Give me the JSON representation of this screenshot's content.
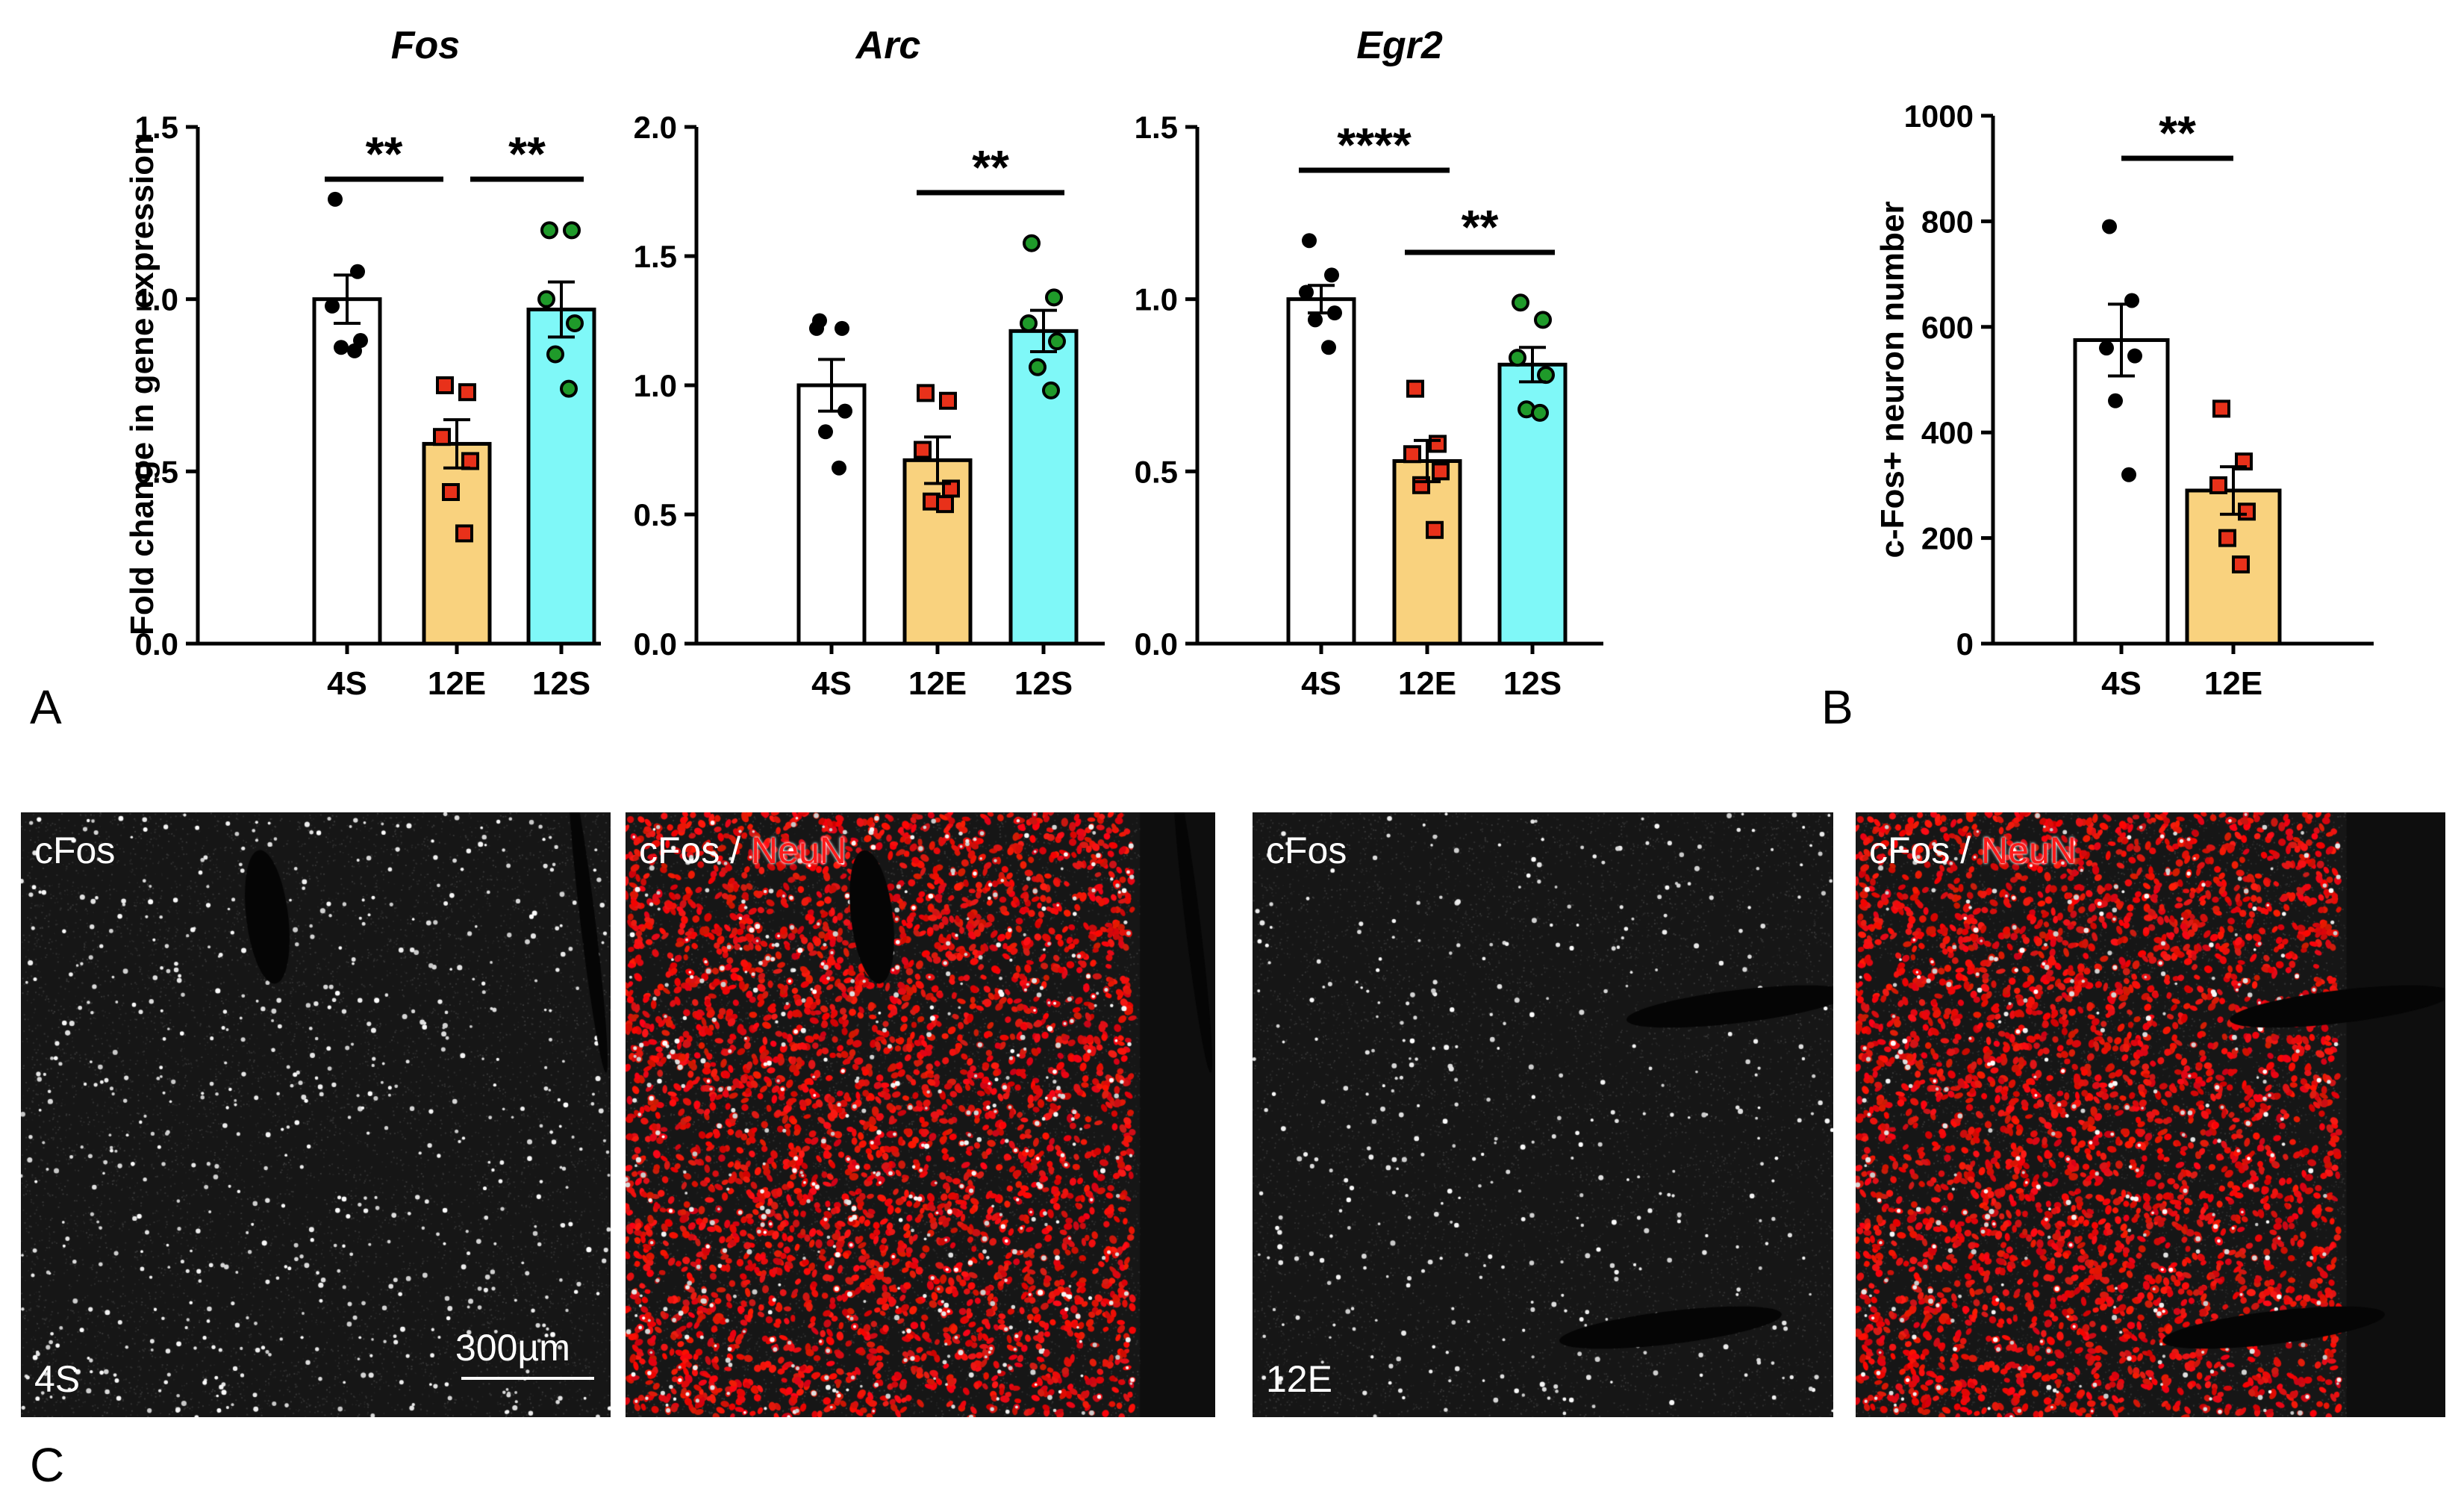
{
  "panel_labels": {
    "A": "A",
    "B": "B",
    "C": "C"
  },
  "colors": {
    "bar_4S": "#ffffff",
    "bar_12E": "#f9d27e",
    "bar_12S": "#7ff8f8",
    "point_4S": "#000000",
    "point_12E": "#e8311a",
    "point_12S": "#1f9a2a",
    "neun": "#ff1a1a"
  },
  "chart_data": [
    {
      "type": "bar",
      "title": "Fos",
      "ylabel": "Fold change in gene expression",
      "ylim": [
        0,
        1.5
      ],
      "yticks": [
        "0.0",
        "0.5",
        "1.0",
        "1.5"
      ],
      "categories": [
        "4S",
        "12E",
        "12S"
      ],
      "values": [
        1.0,
        0.58,
        0.97
      ],
      "sem": [
        0.07,
        0.07,
        0.08
      ],
      "points": [
        [
          1.29,
          1.08,
          0.98,
          0.88,
          0.86,
          0.85
        ],
        [
          0.75,
          0.73,
          0.6,
          0.53,
          0.44,
          0.32
        ],
        [
          1.2,
          1.2,
          1.0,
          0.93,
          0.84,
          0.74
        ]
      ],
      "significance": [
        {
          "from": 0,
          "to": 1,
          "label": "**"
        },
        {
          "from": 1,
          "to": 2,
          "label": "**"
        }
      ]
    },
    {
      "type": "bar",
      "title": "Arc",
      "ylabel": "",
      "ylim": [
        0,
        2.0
      ],
      "yticks": [
        "0.0",
        "0.5",
        "1.0",
        "1.5",
        "2.0"
      ],
      "categories": [
        "4S",
        "12E",
        "12S"
      ],
      "values": [
        1.0,
        0.71,
        1.21
      ],
      "sem": [
        0.1,
        0.09,
        0.08
      ],
      "points": [
        [
          1.25,
          1.22,
          1.22,
          0.9,
          0.82,
          0.68
        ],
        [
          0.97,
          0.94,
          0.75,
          0.6,
          0.55,
          0.54
        ],
        [
          1.55,
          1.34,
          1.24,
          1.17,
          1.07,
          0.98
        ]
      ],
      "significance": [
        {
          "from": 1,
          "to": 2,
          "label": "**"
        }
      ]
    },
    {
      "type": "bar",
      "title": "Egr2",
      "ylabel": "",
      "ylim": [
        0,
        1.5
      ],
      "yticks": [
        "0.0",
        "0.5",
        "1.0",
        "1.5"
      ],
      "categories": [
        "4S",
        "12E",
        "12S"
      ],
      "values": [
        1.0,
        0.53,
        0.81
      ],
      "sem": [
        0.04,
        0.06,
        0.05
      ],
      "points": [
        [
          1.17,
          1.07,
          1.02,
          0.96,
          0.94,
          0.86
        ],
        [
          0.74,
          0.58,
          0.55,
          0.5,
          0.46,
          0.33
        ],
        [
          0.99,
          0.94,
          0.83,
          0.78,
          0.68,
          0.67
        ]
      ],
      "significance": [
        {
          "from": 0,
          "to": 1,
          "label": "****"
        },
        {
          "from": 1,
          "to": 2,
          "label": "**"
        }
      ]
    },
    {
      "type": "bar",
      "title": "",
      "ylabel": "c-Fos+ neuron number",
      "ylim": [
        0,
        1000
      ],
      "yticks": [
        "0",
        "200",
        "400",
        "600",
        "800",
        "1000"
      ],
      "categories": [
        "4S",
        "12E"
      ],
      "values": [
        575,
        290
      ],
      "sem": [
        68,
        45
      ],
      "points": [
        [
          790,
          650,
          560,
          545,
          460,
          320
        ],
        [
          445,
          345,
          300,
          250,
          200,
          150
        ]
      ],
      "significance": [
        {
          "from": 0,
          "to": 1,
          "label": "**"
        }
      ]
    }
  ],
  "micrographs": [
    {
      "label": "cFos",
      "label_red": "",
      "condition": "4S",
      "scale_text": "300µm"
    },
    {
      "label": "cFos / ",
      "label_red": "NeuN",
      "condition": "",
      "scale_text": ""
    },
    {
      "label": "cFos",
      "label_red": "",
      "condition": "12E",
      "scale_text": ""
    },
    {
      "label": "cFos / ",
      "label_red": "NeuN",
      "condition": "",
      "scale_text": ""
    }
  ]
}
